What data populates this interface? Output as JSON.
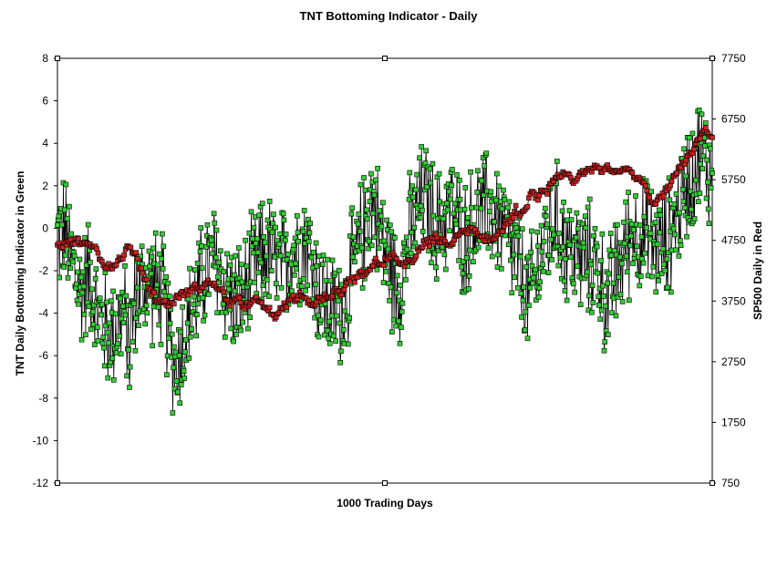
{
  "chart_data": {
    "type": "line",
    "title": "TNT Bottoming Indicator - Daily",
    "xlabel": "1000 Trading Days",
    "ylabel_left": "TNT Daily Bottoming Indicator in Green",
    "ylabel_right": "SP500 Daily in Red",
    "x_range": [
      0,
      1000
    ],
    "ylim_left": [
      -12,
      8
    ],
    "ylim_right": [
      750,
      7750
    ],
    "left_ticks": [
      "8",
      "6",
      "4",
      "2",
      "0",
      "-2",
      "-4",
      "-6",
      "-8",
      "-10",
      "-12"
    ],
    "right_ticks": [
      "7750",
      "6750",
      "5750",
      "4750",
      "3750",
      "2750",
      "1750",
      "750"
    ],
    "grid": false,
    "legend": "none",
    "colors": {
      "green_series": "#33cc33",
      "red_series": "#cc2222",
      "line": "#000000"
    },
    "series": [
      {
        "name": "TNT Daily Bottoming Indicator in Green",
        "axis": "left",
        "anchors_x": [
          0,
          10,
          20,
          35,
          50,
          60,
          80,
          100,
          110,
          120,
          140,
          160,
          170,
          180,
          200,
          210,
          225,
          240,
          260,
          280,
          300,
          320,
          340,
          360,
          380,
          400,
          420,
          440,
          450,
          460,
          480,
          500,
          520,
          540,
          560,
          580,
          600,
          620,
          640,
          660,
          680,
          700,
          720,
          740,
          760,
          780,
          800,
          820,
          840,
          860,
          880,
          900,
          920,
          940,
          960,
          980,
          1000
        ],
        "anchors_y": [
          -0.5,
          0.0,
          -1.5,
          -3.0,
          -2.0,
          -4.0,
          -5.0,
          -4.0,
          -5.5,
          -3.0,
          -2.5,
          -3.0,
          -5.0,
          -6.5,
          -4.5,
          -3.5,
          -2.0,
          -1.5,
          -3.0,
          -3.5,
          -2.0,
          -1.0,
          -2.0,
          -1.0,
          -0.5,
          -3.0,
          -4.0,
          -3.5,
          -2.0,
          -1.0,
          1.5,
          -1.0,
          -3.0,
          0.0,
          1.5,
          0.0,
          1.0,
          -0.5,
          0.5,
          1.0,
          0.0,
          -1.5,
          -3.5,
          -1.0,
          0.5,
          -1.0,
          -1.5,
          -1.5,
          -3.5,
          -1.5,
          0.0,
          -0.5,
          -1.0,
          0.0,
          2.0,
          3.5,
          2.5
        ],
        "noise_amplitude": 3.2
      },
      {
        "name": "SP500 Daily in Red",
        "axis": "right",
        "anchors_x": [
          0,
          15,
          40,
          60,
          75,
          100,
          110,
          125,
          150,
          175,
          200,
          220,
          240,
          255,
          270,
          290,
          310,
          330,
          350,
          370,
          390,
          410,
          420,
          440,
          460,
          480,
          500,
          510,
          530,
          560,
          580,
          600,
          620,
          640,
          650,
          665,
          680,
          700,
          710,
          720,
          740,
          770,
          790,
          810,
          830,
          850,
          870,
          890,
          910,
          930,
          950,
          970,
          990,
          1000
        ],
        "anchors_y": [
          4700,
          4800,
          4700,
          4500,
          4350,
          4450,
          4600,
          4300,
          3800,
          3700,
          3900,
          3950,
          4100,
          3800,
          3800,
          3650,
          3700,
          3500,
          3700,
          3800,
          3700,
          3800,
          3800,
          3900,
          4100,
          4300,
          4500,
          4450,
          4300,
          4650,
          4700,
          4700,
          4900,
          4850,
          4700,
          4800,
          5000,
          5200,
          5100,
          5400,
          5500,
          5800,
          5700,
          5900,
          6000,
          5950,
          6000,
          5700,
          5300,
          5600,
          6000,
          6200,
          6500,
          6550
        ],
        "noise_amplitude": 90
      }
    ]
  }
}
